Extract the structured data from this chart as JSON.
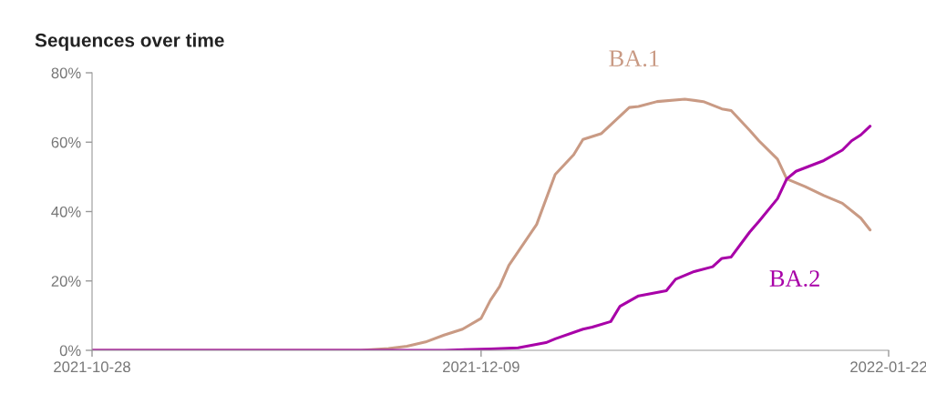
{
  "chart_data": {
    "type": "line",
    "title": "Sequences over time",
    "xlim": [
      "2021-10-28",
      "2022-01-22"
    ],
    "xticks": [
      {
        "value": "2021-10-28",
        "label": "2021-10-28"
      },
      {
        "value": "2021-12-09",
        "label": "2021-12-09"
      },
      {
        "value": "2022-01-22",
        "label": "2022-01-22"
      }
    ],
    "ylim": [
      0,
      80
    ],
    "yticks": [
      {
        "value": 0,
        "label": "0%"
      },
      {
        "value": 20,
        "label": "20%"
      },
      {
        "value": 40,
        "label": "40%"
      },
      {
        "value": 60,
        "label": "60%"
      },
      {
        "value": 80,
        "label": "80%"
      }
    ],
    "grid": false,
    "legend": false,
    "marker": "none",
    "line_style": "solid",
    "series": [
      {
        "name": "BA.1",
        "color": "#c99a84",
        "x": [
          "2021-10-28",
          "2021-11-26",
          "2021-11-29",
          "2021-12-01",
          "2021-12-03",
          "2021-12-05",
          "2021-12-07",
          "2021-12-09",
          "2021-12-10",
          "2021-12-11",
          "2021-12-12",
          "2021-12-13",
          "2021-12-15",
          "2021-12-17",
          "2021-12-19",
          "2021-12-20",
          "2021-12-22",
          "2021-12-25",
          "2021-12-26",
          "2021-12-28",
          "2021-12-31",
          "2022-01-02",
          "2022-01-04",
          "2022-01-05",
          "2022-01-07",
          "2022-01-08",
          "2022-01-10",
          "2022-01-11",
          "2022-01-13",
          "2022-01-15",
          "2022-01-17",
          "2022-01-19",
          "2022-01-20"
        ],
        "values": [
          0,
          0,
          0.5,
          1.2,
          2.4,
          4.4,
          6.1,
          9.2,
          14.4,
          18.4,
          24.5,
          28.4,
          36.3,
          50.7,
          56.4,
          60.8,
          62.5,
          70.0,
          70.3,
          71.7,
          72.4,
          71.7,
          69.6,
          69.1,
          63.4,
          60.4,
          55.1,
          49.4,
          47.2,
          44.6,
          42.4,
          38.1,
          34.7
        ]
      },
      {
        "name": "BA.2",
        "color": "#a800a8",
        "x": [
          "2021-10-28",
          "2021-12-05",
          "2021-12-10",
          "2021-12-13",
          "2021-12-16",
          "2021-12-17",
          "2021-12-20",
          "2021-12-21",
          "2021-12-23",
          "2021-12-24",
          "2021-12-26",
          "2021-12-29",
          "2021-12-30",
          "2022-01-01",
          "2022-01-03",
          "2022-01-04",
          "2022-01-05",
          "2022-01-07",
          "2022-01-08",
          "2022-01-10",
          "2022-01-11",
          "2022-01-12",
          "2022-01-15",
          "2022-01-17",
          "2022-01-18",
          "2022-01-19",
          "2022-01-20"
        ],
        "values": [
          0,
          0,
          0.4,
          0.7,
          2.2,
          3.3,
          6.1,
          6.7,
          8.3,
          12.7,
          15.7,
          17.2,
          20.5,
          22.7,
          24.1,
          26.5,
          26.9,
          34.1,
          37.2,
          43.7,
          49.4,
          51.6,
          54.7,
          57.7,
          60.4,
          62.1,
          64.6
        ]
      }
    ]
  }
}
